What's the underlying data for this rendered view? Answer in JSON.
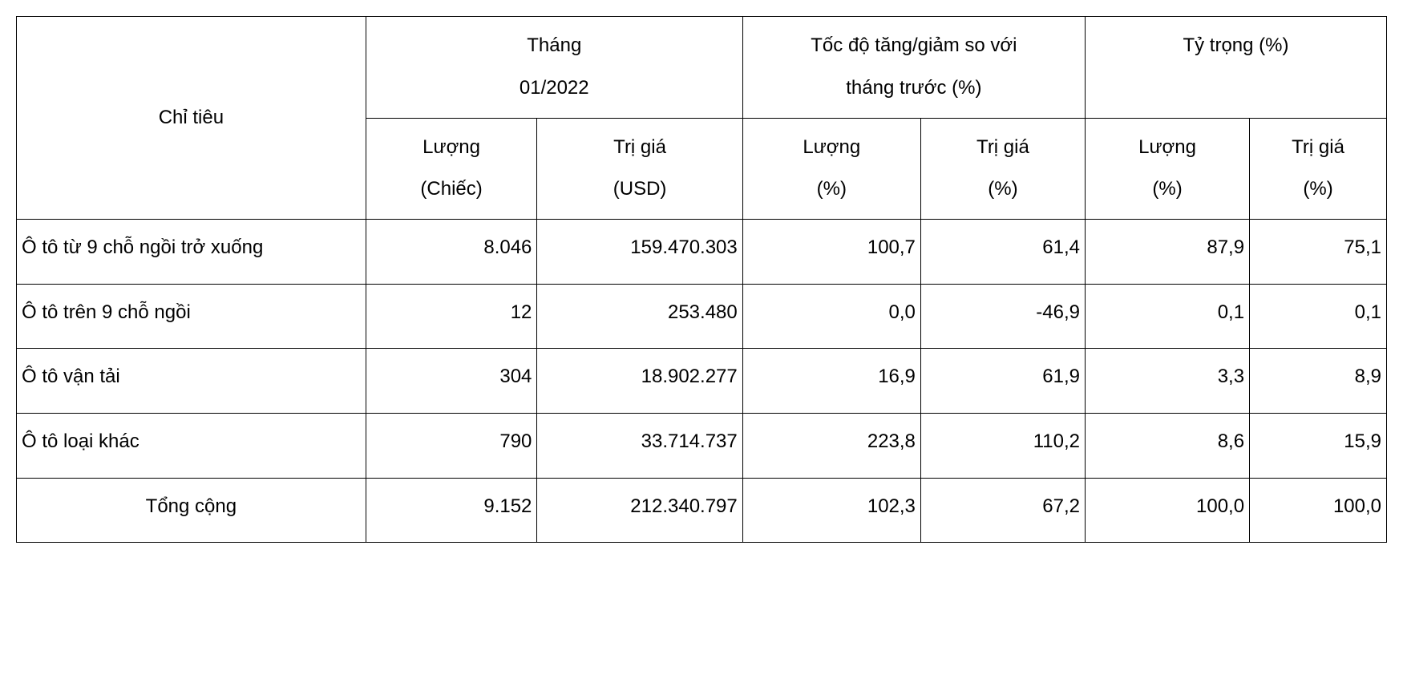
{
  "table": {
    "type": "table",
    "background_color": "#ffffff",
    "border_color": "#000000",
    "text_color": "#000000",
    "font_size_pt": 18,
    "font_family": "Arial",
    "header": {
      "indicator_label": "Chỉ tiêu",
      "group1_line1": "Tháng",
      "group1_line2": "01/2022",
      "group2_line1": "Tốc độ tăng/giảm so với",
      "group2_line2": "tháng trước (%)",
      "group3": "Tỷ trọng (%)",
      "sub_qty1_line1": "Lượng",
      "sub_qty1_line2": "(Chiếc)",
      "sub_val1_line1": "Trị giá",
      "sub_val1_line2": "(USD)",
      "sub_qty2_line1": "Lượng",
      "sub_qty2_line2": "(%)",
      "sub_val2_line1": "Trị giá",
      "sub_val2_line2": "(%)",
      "sub_qty3_line1": "Lượng",
      "sub_qty3_line2": "(%)",
      "sub_val3_line1": "Trị giá",
      "sub_val3_line2": "(%)"
    },
    "column_widths_pct": [
      25.5,
      12.5,
      15,
      13,
      12,
      12,
      10
    ],
    "column_alignment": [
      "left",
      "right",
      "right",
      "right",
      "right",
      "right",
      "right"
    ],
    "rows": [
      {
        "label": "Ô tô từ 9 chỗ ngồi trở xuống",
        "qty1": "8.046",
        "val1": "159.470.303",
        "qty2": "100,7",
        "val2": "61,4",
        "qty3": "87,9",
        "val3": "75,1"
      },
      {
        "label": "Ô tô trên 9 chỗ ngồi",
        "qty1": "12",
        "val1": "253.480",
        "qty2": "0,0",
        "val2": "-46,9",
        "qty3": "0,1",
        "val3": "0,1"
      },
      {
        "label": "Ô tô vận tải",
        "qty1": "304",
        "val1": "18.902.277",
        "qty2": "16,9",
        "val2": "61,9",
        "qty3": "3,3",
        "val3": "8,9"
      },
      {
        "label": "Ô tô loại khác",
        "qty1": "790",
        "val1": "33.714.737",
        "qty2": "223,8",
        "val2": "110,2",
        "qty3": "8,6",
        "val3": "15,9"
      }
    ],
    "total": {
      "label": "Tổng cộng",
      "qty1": "9.152",
      "val1": "212.340.797",
      "qty2": "102,3",
      "val2": "67,2",
      "qty3": "100,0",
      "val3": "100,0"
    }
  }
}
